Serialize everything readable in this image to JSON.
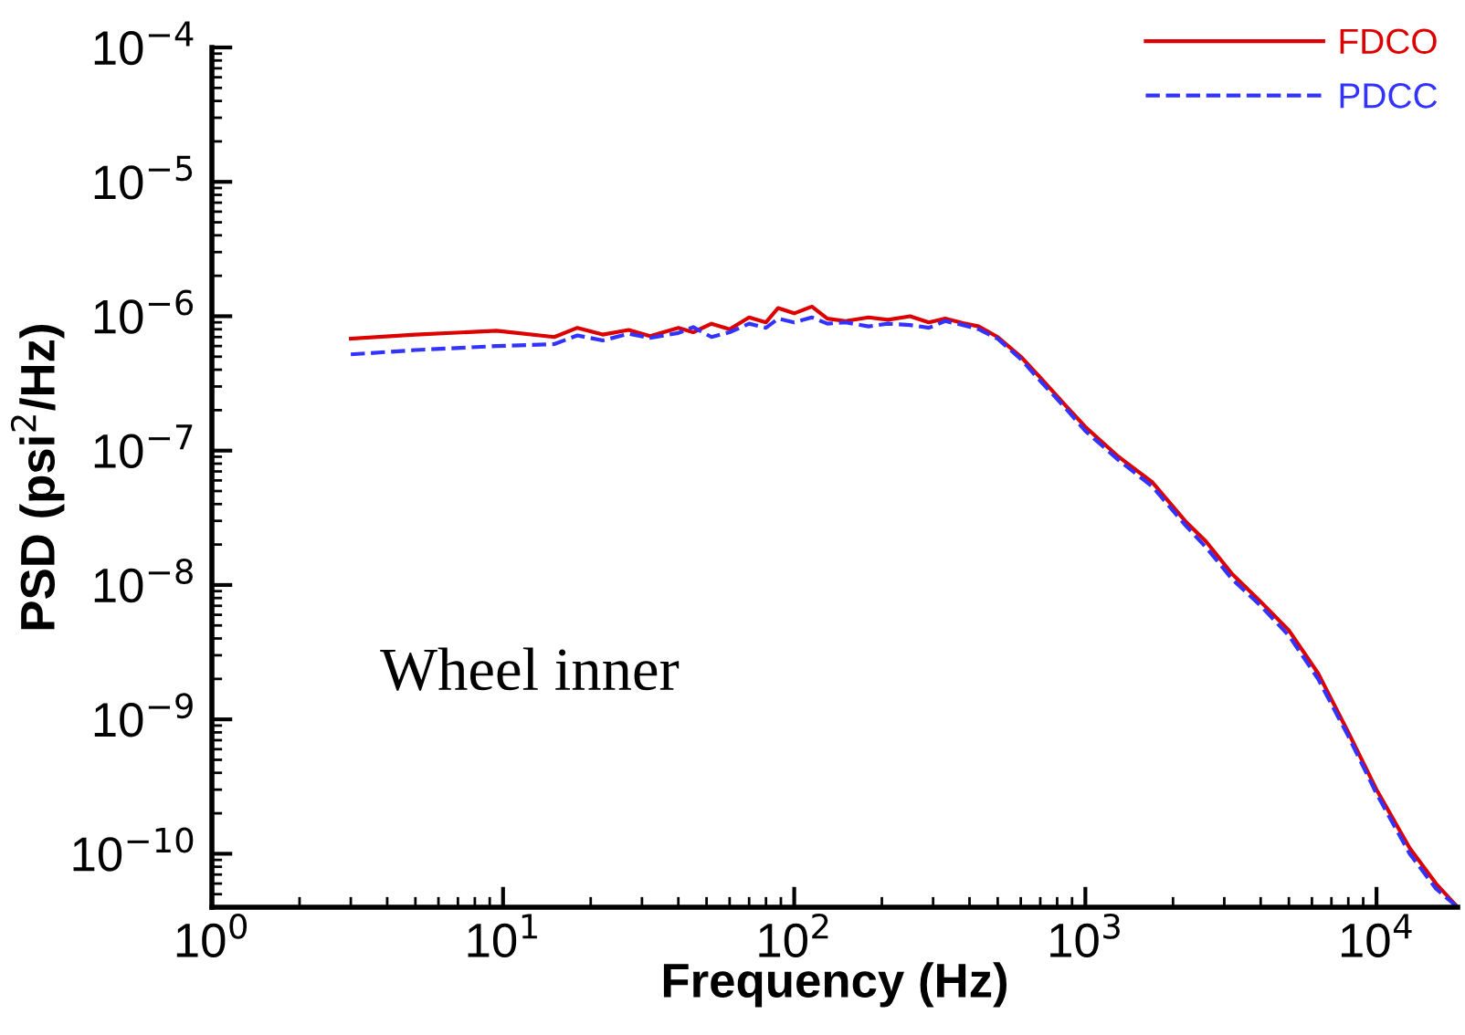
{
  "chart_data": {
    "type": "line",
    "xlabel": "Frequency (Hz)",
    "ylabel": "PSD (psi$^{2}$/Hz)",
    "log": "xy",
    "grid": false,
    "legend": "top right",
    "xlim": [
      1,
      19000
    ],
    "ylim": [
      4e-11,
      0.0001
    ],
    "xticks": [
      {
        "value": 1,
        "label": "10$^{0}$"
      },
      {
        "value": 10,
        "label": "10$^{1}$"
      },
      {
        "value": 100,
        "label": "10$^{2}$"
      },
      {
        "value": 1000,
        "label": "10$^{3}$"
      },
      {
        "value": 10000,
        "label": "10$^{4}$"
      }
    ],
    "yticks": [
      {
        "value": 0.0001,
        "label": "10$^{−4}$"
      },
      {
        "value": 1e-05,
        "label": "10$^{−5}$"
      },
      {
        "value": 1e-06,
        "label": "10$^{−6}$"
      },
      {
        "value": 1e-07,
        "label": "10$^{−7}$"
      },
      {
        "value": 1e-08,
        "label": "10$^{−8}$"
      },
      {
        "value": 1e-09,
        "label": "10$^{−9}$"
      },
      {
        "value": 1e-10,
        "label": "10$^{−10}$"
      }
    ],
    "annotations": [
      "Wheel inner"
    ],
    "series": [
      {
        "name": "FDCO",
        "color": "#dd0000",
        "line_style": "solid",
        "x": [
          3,
          5,
          9.5,
          15,
          18,
          22,
          27,
          32,
          40,
          45,
          52,
          60,
          70,
          80,
          88,
          100,
          115,
          130,
          150,
          180,
          210,
          250,
          290,
          330,
          380,
          430,
          500,
          600,
          700,
          850,
          1000,
          1300,
          1700,
          2200,
          2600,
          3200,
          4000,
          5000,
          6300,
          8000,
          10000,
          13000,
          16000,
          19000
        ],
        "values": [
          6.8e-07,
          7.3e-07,
          7.8e-07,
          7e-07,
          8.2e-07,
          7.3e-07,
          7.9e-07,
          7.1e-07,
          8.2e-07,
          7.6e-07,
          8.8e-07,
          8e-07,
          9.8e-07,
          9e-07,
          1.15e-06,
          1.05e-06,
          1.18e-06,
          9.6e-07,
          9.2e-07,
          9.8e-07,
          9.4e-07,
          1e-06,
          9e-07,
          9.6e-07,
          8.9e-07,
          8.4e-07,
          7e-07,
          5e-07,
          3.5e-07,
          2.2e-07,
          1.5e-07,
          9e-08,
          5.8e-08,
          3e-08,
          2.1e-08,
          1.2e-08,
          7.5e-09,
          4.6e-09,
          2.2e-09,
          8e-10,
          3e-10,
          1.1e-10,
          6e-11,
          4e-11
        ]
      },
      {
        "name": "PDCC",
        "color": "#3333ff",
        "line_style": "dashed",
        "x": [
          3,
          5,
          9.5,
          15,
          18,
          22,
          27,
          32,
          40,
          45,
          52,
          60,
          70,
          80,
          88,
          100,
          115,
          130,
          150,
          180,
          210,
          250,
          290,
          330,
          380,
          430,
          500,
          600,
          700,
          850,
          1000,
          1300,
          1700,
          2200,
          2600,
          3200,
          4000,
          5000,
          6300,
          8000,
          10000,
          13000,
          16000,
          19000
        ],
        "values": [
          5.2e-07,
          5.6e-07,
          6e-07,
          6.2e-07,
          7.2e-07,
          6.6e-07,
          7.4e-07,
          6.9e-07,
          7.5e-07,
          8.3e-07,
          7e-07,
          7.6e-07,
          8.8e-07,
          8.2e-07,
          9.6e-07,
          9e-07,
          9.8e-07,
          8.8e-07,
          9e-07,
          8.4e-07,
          8.8e-07,
          8.6e-07,
          8.2e-07,
          9.2e-07,
          8.6e-07,
          8e-07,
          6.8e-07,
          4.8e-07,
          3.3e-07,
          2.1e-07,
          1.4e-07,
          8.5e-08,
          5.4e-08,
          2.8e-08,
          1.9e-08,
          1.1e-08,
          7e-09,
          4.2e-09,
          2e-09,
          7.5e-10,
          2.8e-10,
          1e-10,
          5.5e-11,
          4e-11
        ]
      }
    ]
  }
}
